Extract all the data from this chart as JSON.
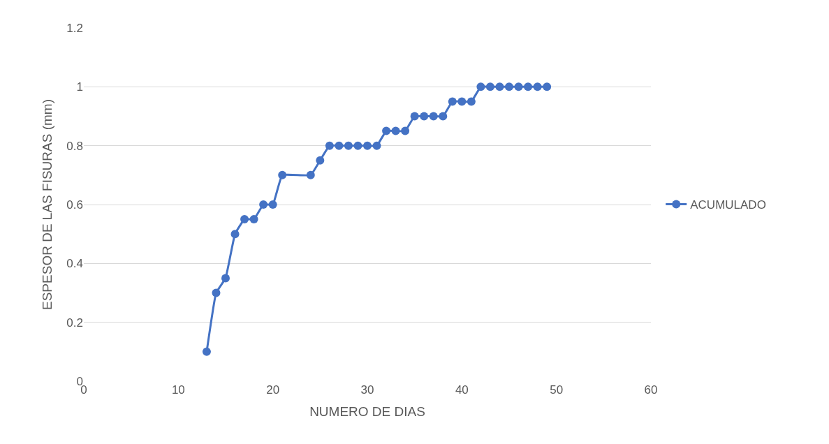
{
  "chart_data": {
    "type": "line",
    "xlabel": "NUMERO DE DIAS",
    "ylabel": "ESPESOR DE LAS FISURAS (mm)",
    "x": [
      13,
      14,
      15,
      16,
      17,
      18,
      19,
      20,
      21,
      24,
      25,
      26,
      27,
      28,
      29,
      30,
      31,
      32,
      33,
      34,
      35,
      36,
      37,
      38,
      39,
      40,
      41,
      42,
      43,
      44,
      45,
      46,
      47,
      48,
      49
    ],
    "series": [
      {
        "name": "ACUMULADO",
        "color": "#4472c4",
        "values": [
          0.1,
          0.3,
          0.35,
          0.5,
          0.55,
          0.55,
          0.6,
          0.6,
          0.7,
          0.7,
          0.75,
          0.8,
          0.8,
          0.8,
          0.8,
          0.8,
          0.8,
          0.85,
          0.85,
          0.85,
          0.9,
          0.9,
          0.9,
          0.9,
          0.95,
          0.95,
          0.95,
          1,
          1,
          1,
          1,
          1,
          1,
          1,
          1
        ]
      }
    ],
    "xlim": [
      0,
      60
    ],
    "xticks": [
      0,
      10,
      20,
      30,
      40,
      50,
      60
    ],
    "ylim": [
      0,
      1.2
    ],
    "yticks": [
      0,
      0.2,
      0.4,
      0.6,
      0.8,
      1,
      1.2
    ],
    "grid": "y",
    "legend": "right",
    "marker": "circle",
    "line_style": "solid"
  }
}
